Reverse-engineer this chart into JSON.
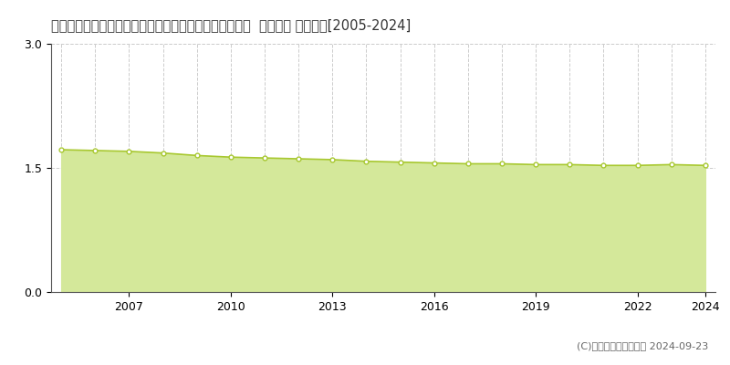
{
  "title": "広島県山県郡安芸太田町大字中筒賀字山之廻７５９番１  基準地価 地価推移[2005-2024]",
  "years": [
    2005,
    2006,
    2007,
    2008,
    2009,
    2010,
    2011,
    2012,
    2013,
    2014,
    2015,
    2016,
    2017,
    2018,
    2019,
    2020,
    2021,
    2022,
    2023,
    2024
  ],
  "values": [
    1.72,
    1.71,
    1.7,
    1.68,
    1.65,
    1.63,
    1.62,
    1.61,
    1.6,
    1.58,
    1.57,
    1.56,
    1.55,
    1.55,
    1.54,
    1.54,
    1.53,
    1.53,
    1.54,
    1.53
  ],
  "line_color": "#a8c830",
  "fill_color": "#d4e89a",
  "marker_color": "#ffffff",
  "marker_edge_color": "#a8c830",
  "legend_marker_color": "#c8e040",
  "copyright": "(C)土地価格ドットコム 2024-09-23",
  "ylim": [
    0,
    3
  ],
  "yticks": [
    0,
    1.5,
    3
  ],
  "xtick_years": [
    2007,
    2010,
    2013,
    2016,
    2019,
    2022,
    2024
  ],
  "background_color": "#ffffff",
  "grid_color": "#cccccc",
  "title_fontsize": 10.5,
  "tick_fontsize": 9
}
